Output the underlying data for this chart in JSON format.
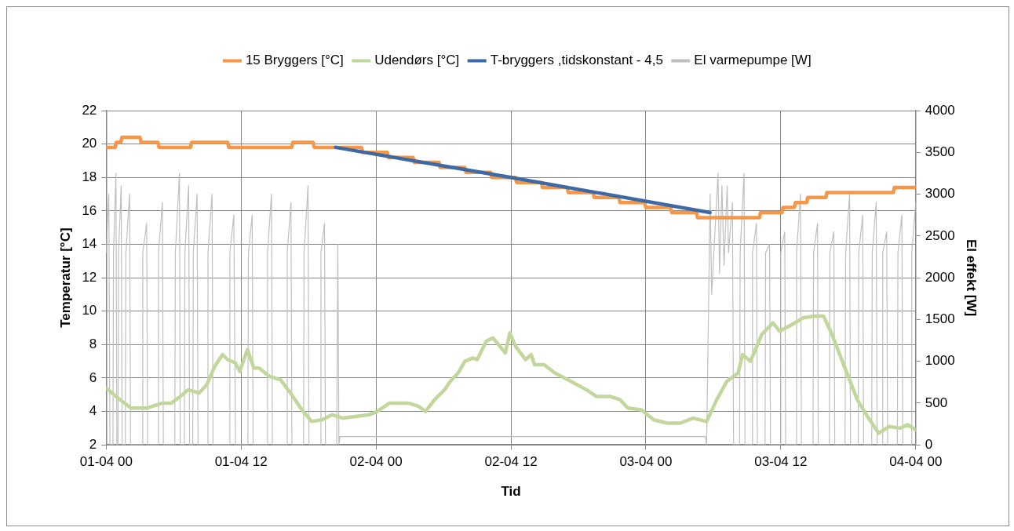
{
  "chart_data": {
    "type": "line",
    "xlabel": "Tid",
    "ylabel": "Temperatur [°C]",
    "y2label": "El effekt [W]",
    "xlim": [
      "--04-01T00:00",
      "--04-04T00:00"
    ],
    "xticks": [
      {
        "value": "--04-01T00:00",
        "label": "01-04 00"
      },
      {
        "value": "--04-01T12:00",
        "label": "01-04 12"
      },
      {
        "value": "--04-02T00:00",
        "label": "02-04 00"
      },
      {
        "value": "--04-02T12:00",
        "label": "02-04 12"
      },
      {
        "value": "--04-03T00:00",
        "label": "03-04 00"
      },
      {
        "value": "--04-03T12:00",
        "label": "03-04 12"
      },
      {
        "value": "--04-04T00:00",
        "label": "04-04 00"
      }
    ],
    "ylim": [
      2,
      22
    ],
    "yticks": [
      2,
      4,
      6,
      8,
      10,
      12,
      14,
      16,
      18,
      20,
      22
    ],
    "y2lim": [
      0,
      4000
    ],
    "y2ticks": [
      0,
      500,
      1000,
      1500,
      2000,
      2500,
      3000,
      3500,
      4000
    ],
    "grid": true,
    "legend": "top",
    "marker": "none",
    "line_style": "solid",
    "series": [
      {
        "name": "15 Bryggers [°C]",
        "color": "#f79646",
        "x": [
          "--04-01T00:00",
          "--04-01T00:48",
          "--04-01T00:54",
          "--04-01T01:18",
          "--04-01T01:24",
          "--04-01T03:00",
          "--04-01T03:06",
          "--04-01T04:36",
          "--04-01T04:42",
          "--04-01T07:30",
          "--04-01T07:36",
          "--04-01T10:48",
          "--04-01T10:54",
          "--04-01T16:30",
          "--04-01T16:36",
          "--04-01T18:24",
          "--04-01T18:30",
          "--04-01T22:42",
          "--04-01T22:48",
          "--04-02T01:00",
          "--04-02T01:06",
          "--04-02T03:18",
          "--04-02T03:24",
          "--04-02T05:36",
          "--04-02T05:42",
          "--04-02T07:54",
          "--04-02T08:00",
          "--04-02T10:12",
          "--04-02T10:18",
          "--04-02T12:24",
          "--04-02T12:30",
          "--04-02T14:42",
          "--04-02T14:48",
          "--04-02T17:00",
          "--04-02T17:06",
          "--04-02T19:18",
          "--04-02T19:24",
          "--04-02T21:36",
          "--04-02T21:42",
          "--04-02T23:54",
          "--04-03T00:00",
          "--04-03T02:12",
          "--04-03T02:18",
          "--04-03T04:30",
          "--04-03T04:36",
          "--04-03T10:06",
          "--04-03T10:12",
          "--04-03T12:06",
          "--04-03T12:12",
          "--04-03T13:12",
          "--04-03T13:18",
          "--04-03T14:18",
          "--04-03T14:24",
          "--04-03T16:00",
          "--04-03T16:06",
          "--04-03T22:00",
          "--04-03T22:06",
          "--04-04T00:00"
        ],
        "values": [
          19.8,
          19.8,
          20.1,
          20.1,
          20.4,
          20.4,
          20.1,
          20.1,
          19.8,
          19.8,
          20.1,
          20.1,
          19.8,
          19.8,
          20.1,
          20.1,
          19.8,
          19.8,
          19.5,
          19.5,
          19.2,
          19.2,
          18.9,
          18.9,
          18.6,
          18.6,
          18.3,
          18.3,
          18.0,
          18.0,
          17.7,
          17.7,
          17.4,
          17.4,
          17.1,
          17.1,
          16.8,
          16.8,
          16.5,
          16.5,
          16.2,
          16.2,
          15.9,
          15.9,
          15.6,
          15.6,
          15.9,
          15.9,
          16.2,
          16.2,
          16.5,
          16.5,
          16.8,
          16.8,
          17.1,
          17.1,
          17.4,
          17.4
        ]
      },
      {
        "name": "Udendørs [°C]",
        "color": "#c3d69b",
        "x": [
          "--04-01T00:00",
          "--04-01T01:03",
          "--04-01T02:12",
          "--04-01T03:36",
          "--04-01T05:00",
          "--04-01T05:48",
          "--04-01T06:36",
          "--04-01T07:18",
          "--04-01T08:15",
          "--04-01T08:57",
          "--04-01T09:39",
          "--04-01T10:21",
          "--04-01T10:48",
          "--04-01T11:30",
          "--04-01T11:52",
          "--04-01T12:34",
          "--04-01T13:08",
          "--04-01T13:36",
          "--04-01T14:30",
          "--04-01T15:30",
          "--04-01T16:24",
          "--04-01T17:18",
          "--04-01T18:16",
          "--04-01T19:12",
          "--04-01T20:06",
          "--04-01T21:03",
          "--04-01T23:24",
          "--04-02T00:06",
          "--04-02T01:12",
          "--04-02T02:54",
          "--04-02T03:48",
          "--04-02T04:24",
          "--04-02T05:12",
          "--04-02T06:06",
          "--04-02T06:36",
          "--04-02T07:18",
          "--04-02T07:54",
          "--04-02T08:36",
          "--04-02T09:00",
          "--04-02T09:48",
          "--04-02T10:24",
          "--04-02T11:30",
          "--04-02T11:54",
          "--04-02T12:24",
          "--04-02T13:18",
          "--04-02T13:48",
          "--04-02T14:06",
          "--04-02T14:57",
          "--04-02T15:54",
          "--04-02T17:03",
          "--04-02T18:42",
          "--04-02T19:36",
          "--04-02T20:48",
          "--04-02T21:42",
          "--04-02T22:24",
          "--04-02T23:36",
          "--04-03T00:42",
          "--04-03T01:54",
          "--04-03T03:03",
          "--04-03T04:12",
          "--04-03T05:24",
          "--04-03T06:18",
          "--04-03T07:12",
          "--04-03T08:12",
          "--04-03T08:36",
          "--04-03T09:18",
          "--04-03T10:18",
          "--04-03T11:18",
          "--04-03T11:54",
          "--04-03T13:00",
          "--04-03T14:00",
          "--04-03T14:54",
          "--04-03T15:48",
          "--04-03T16:30",
          "--04-03T17:42",
          "--04-03T18:48",
          "--04-03T19:48",
          "--04-03T20:42",
          "--04-03T21:39",
          "--04-03T22:36",
          "--04-03T23:18",
          "--04-04T00:00"
        ],
        "values": [
          5.4,
          4.8,
          4.2,
          4.2,
          4.5,
          4.5,
          4.9,
          5.3,
          5.1,
          5.6,
          6.7,
          7.4,
          7.1,
          6.9,
          6.4,
          7.7,
          6.6,
          6.6,
          6.1,
          5.9,
          5.1,
          4.2,
          3.4,
          3.5,
          3.8,
          3.6,
          3.8,
          4.0,
          4.5,
          4.5,
          4.3,
          4.0,
          4.7,
          5.3,
          5.8,
          6.3,
          7.0,
          7.2,
          7.1,
          8.2,
          8.4,
          7.5,
          8.7,
          7.9,
          7.1,
          7.4,
          6.8,
          6.8,
          6.3,
          5.9,
          5.3,
          4.9,
          4.9,
          4.7,
          4.2,
          4.1,
          3.5,
          3.3,
          3.3,
          3.6,
          3.4,
          4.7,
          5.8,
          6.3,
          7.4,
          7.0,
          8.6,
          9.3,
          8.8,
          9.2,
          9.6,
          9.7,
          9.7,
          8.7,
          6.6,
          4.7,
          3.6,
          2.7,
          3.1,
          3.0,
          3.2,
          2.9
        ]
      },
      {
        "name": "T-bryggers ,tidskonstant - 4,5",
        "color": "#3d6aa5",
        "x": [
          "--04-01T20:24",
          "--04-02T12:00",
          "--04-03T05:42"
        ],
        "values": [
          19.8,
          18.0,
          15.9
        ]
      },
      {
        "name": "El varmepumpe [W]",
        "color": "#bfbfbf",
        "axis": "y2",
        "x": [
          "--04-01T00:00",
          "--04-01T00:14",
          "--04-01T00:20",
          "--04-01T00:36",
          "--04-01T00:39",
          "--04-01T00:52",
          "--04-01T00:57",
          "--04-01T01:03",
          "--04-01T01:06",
          "--04-01T01:20",
          "--04-01T01:25",
          "--04-01T01:42",
          "--04-01T01:45",
          "--04-01T02:05",
          "--04-01T02:10",
          "--04-01T03:12",
          "--04-01T03:15",
          "--04-01T03:36",
          "--04-01T03:41",
          "--04-01T04:36",
          "--04-01T04:39",
          "--04-01T05:00",
          "--04-01T05:05",
          "--04-01T06:06",
          "--04-01T06:09",
          "--04-01T06:31",
          "--04-01T06:35",
          "--04-01T06:57",
          "--04-01T07:00",
          "--04-01T07:20",
          "--04-01T07:25",
          "--04-01T07:42",
          "--04-01T07:45",
          "--04-01T08:05",
          "--04-01T08:10",
          "--04-01T09:00",
          "--04-01T09:03",
          "--04-01T09:25",
          "--04-01T09:30",
          "--04-01T10:57",
          "--04-01T11:00",
          "--04-01T11:21",
          "--04-01T11:30",
          "--04-01T12:36",
          "--04-01T12:39",
          "--04-01T12:59",
          "--04-01T13:04",
          "--04-01T14:18",
          "--04-01T14:21",
          "--04-01T14:42",
          "--04-01T14:47",
          "--04-01T16:03",
          "--04-01T16:06",
          "--04-01T16:26",
          "--04-01T16:31",
          "--04-01T17:33",
          "--04-01T17:36",
          "--04-01T17:57",
          "--04-01T18:02",
          "--04-01T19:03",
          "--04-01T19:06",
          "--04-01T19:25",
          "--04-01T19:30",
          "--04-01T20:30",
          "--04-01T20:36",
          "--04-01T20:42",
          "--04-01T20:48",
          "--04-03T05:18",
          "--04-03T05:24",
          "--04-03T05:43",
          "--04-03T05:51",
          "--04-03T06:25",
          "--04-03T06:33",
          "--04-03T06:46",
          "--04-03T06:57",
          "--04-03T07:14",
          "--04-03T07:21",
          "--04-03T07:42",
          "--04-03T07:48",
          "--04-03T08:20",
          "--04-03T08:23",
          "--04-03T08:44",
          "--04-03T08:49",
          "--04-03T09:26",
          "--04-03T09:29",
          "--04-03T09:50",
          "--04-03T09:55",
          "--04-03T10:36",
          "--04-03T10:39",
          "--04-03T11:00",
          "--04-03T11:05",
          "--04-03T11:57",
          "--04-03T12:00",
          "--04-03T12:21",
          "--04-03T12:26",
          "--04-03T13:21",
          "--04-03T13:24",
          "--04-03T13:45",
          "--04-03T13:50",
          "--04-03T14:52",
          "--04-03T14:55",
          "--04-03T15:16",
          "--04-03T15:20",
          "--04-03T16:19",
          "--04-03T16:22",
          "--04-03T16:43",
          "--04-03T16:48",
          "--04-03T17:43",
          "--04-03T17:46",
          "--04-03T18:07",
          "--04-03T18:12",
          "--04-03T18:53",
          "--04-03T18:56",
          "--04-03T19:17",
          "--04-03T19:22",
          "--04-03T20:05",
          "--04-03T20:08",
          "--04-03T20:29",
          "--04-03T20:34",
          "--04-03T21:01",
          "--04-03T21:04",
          "--04-03T21:25",
          "--04-03T21:30",
          "--04-03T22:22",
          "--04-03T22:25",
          "--04-03T22:46",
          "--04-03T22:51",
          "--04-03T23:36",
          "--04-03T23:39",
          "--04-04T00:00"
        ],
        "values": [
          2300,
          3000,
          0,
          0,
          2300,
          3250,
          0,
          0,
          2300,
          3100,
          0,
          0,
          2300,
          3000,
          0,
          0,
          2300,
          2650,
          0,
          0,
          2300,
          2900,
          0,
          0,
          2300,
          3250,
          0,
          0,
          2300,
          3100,
          0,
          0,
          2300,
          3000,
          0,
          0,
          2300,
          3000,
          0,
          0,
          2300,
          2750,
          0,
          0,
          2300,
          2750,
          0,
          0,
          2300,
          3000,
          0,
          0,
          2300,
          2900,
          0,
          0,
          2300,
          3100,
          0,
          0,
          2300,
          2650,
          0,
          0,
          2400,
          0,
          100,
          100,
          0,
          3000,
          1800,
          3250,
          2050,
          3100,
          2150,
          3100,
          2300,
          2900,
          0,
          0,
          2300,
          3250,
          0,
          0,
          2300,
          2650,
          0,
          0,
          2300,
          2400,
          0,
          0,
          2300,
          2550,
          0,
          0,
          2300,
          3000,
          0,
          0,
          2300,
          2650,
          0,
          0,
          2300,
          2550,
          0,
          0,
          2300,
          3000,
          0,
          0,
          2300,
          2750,
          0,
          0,
          2300,
          2900,
          0,
          0,
          2300,
          2550,
          0,
          0,
          2300,
          2750,
          0,
          0,
          2300,
          2900
        ]
      }
    ]
  }
}
